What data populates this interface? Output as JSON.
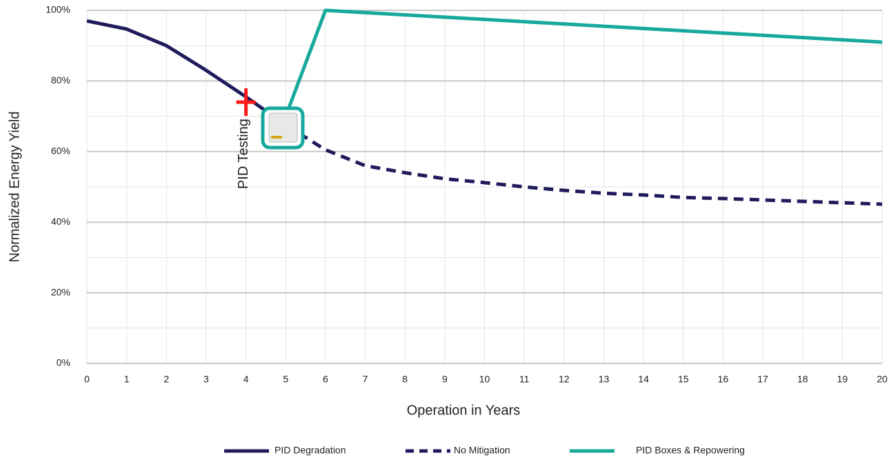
{
  "chart_data": {
    "type": "line",
    "x_label": "Operation in Years",
    "y_label": "Normalized Energy Yield",
    "xlim": [
      0,
      20
    ],
    "ylim": [
      0,
      100
    ],
    "xticks": [
      0,
      1,
      2,
      3,
      4,
      5,
      6,
      7,
      8,
      9,
      10,
      11,
      12,
      13,
      14,
      15,
      16,
      17,
      18,
      19,
      20
    ],
    "yticks": [
      {
        "value": 0,
        "label": "0%"
      },
      {
        "value": 20,
        "label": "20%"
      },
      {
        "value": 40,
        "label": "40%"
      },
      {
        "value": 60,
        "label": "60%"
      },
      {
        "value": 80,
        "label": "80%"
      },
      {
        "value": 100,
        "label": "100%"
      }
    ],
    "minor_yticks": [
      10,
      30,
      50,
      70,
      90
    ],
    "grid": true,
    "legend": "bottom",
    "series": [
      {
        "name": "PID Degradation",
        "color": "#1f1b5c",
        "dash": false,
        "x": [
          0,
          1,
          2,
          3,
          4,
          4.5,
          5
        ],
        "values": [
          97,
          94.7,
          90,
          83,
          75.5,
          71.5,
          67.5
        ]
      },
      {
        "name": "No Mitigation",
        "color": "#1f1b5c",
        "dash": true,
        "x": [
          5,
          6,
          7,
          8,
          9,
          10,
          11,
          12,
          13,
          14,
          15,
          16,
          17,
          18,
          19,
          20
        ],
        "values": [
          67.5,
          60.5,
          56,
          54,
          52.3,
          51.2,
          50,
          49,
          48.2,
          47.7,
          47,
          46.7,
          46.3,
          45.9,
          45.5,
          45.1
        ]
      },
      {
        "name": "PID Boxes & Repowering",
        "color": "#17a99c",
        "dash": false,
        "x": [
          5,
          6,
          20
        ],
        "values": [
          70,
          100,
          91
        ]
      }
    ],
    "annotation": {
      "text": "PID Testing",
      "x": 4,
      "y": 74,
      "color": "#ff1a1a"
    }
  }
}
